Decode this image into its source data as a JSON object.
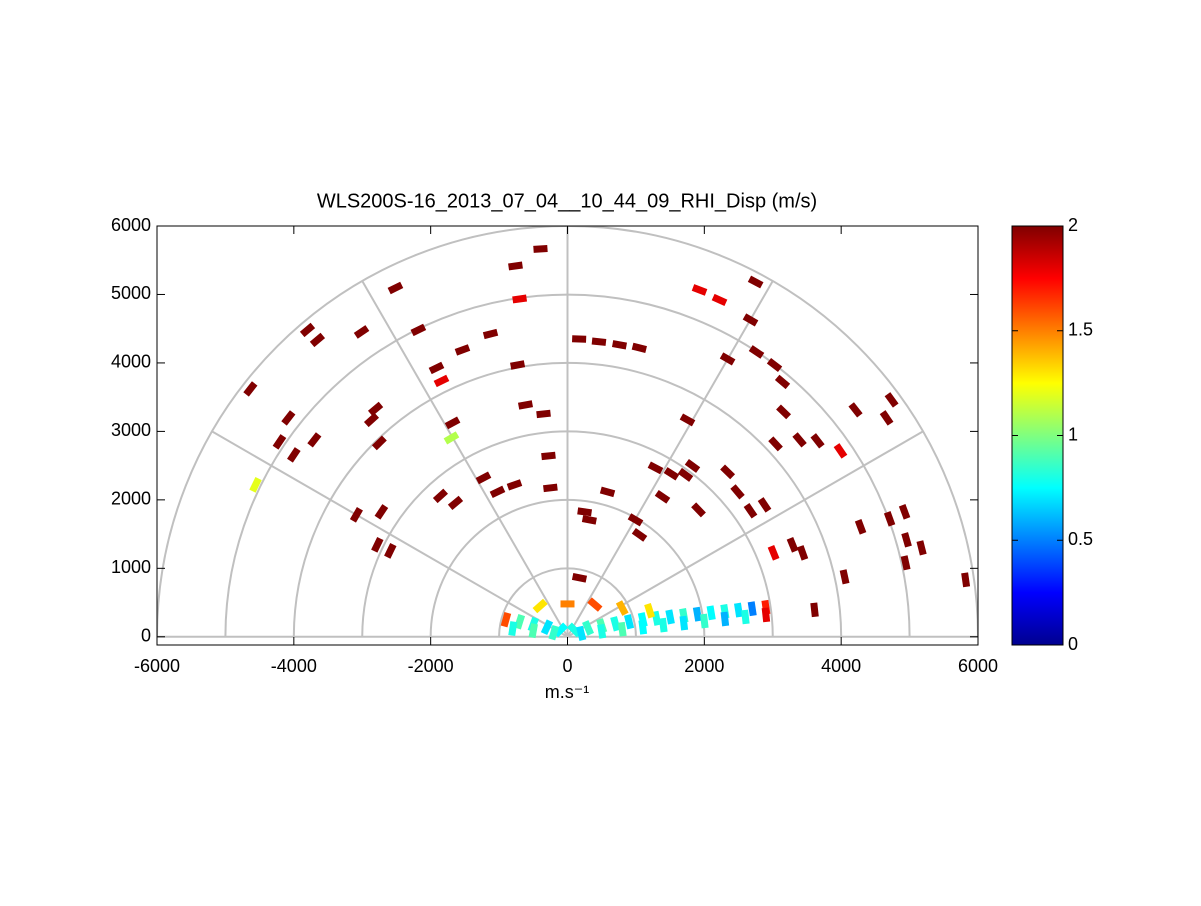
{
  "chart_data": {
    "type": "scatter",
    "title": "WLS200S-16_2013_07_04__10_44_09_RHI_Disp (m/s)",
    "xlabel": "m.s⁻¹",
    "xlim": [
      -6000,
      6000
    ],
    "ylim": [
      -120,
      6000
    ],
    "xticks": [
      -6000,
      -4000,
      -2000,
      0,
      2000,
      4000,
      6000
    ],
    "yticks": [
      0,
      1000,
      2000,
      3000,
      4000,
      5000,
      6000
    ],
    "clim": [
      0,
      2
    ],
    "cticks": [
      0,
      0.5,
      1,
      1.5,
      2
    ],
    "colormap": "jet",
    "rings": [
      1000,
      2000,
      3000,
      4000,
      5000,
      6000
    ],
    "spokes": [
      0,
      30,
      60,
      90,
      120,
      150,
      180
    ],
    "series": [
      {
        "x": [
          -395,
          -760,
          -2515,
          -3800,
          -3655,
          -3010,
          -4635,
          -4080,
          -3700,
          -4000,
          -4210,
          -2805,
          -2865,
          -2750,
          -2180,
          -1535,
          -1125,
          -1915,
          -1842,
          -730,
          -614,
          -350,
          -1680,
          -1696,
          -4560,
          -3085,
          -2720,
          -2780,
          -2590,
          -1857,
          -1637,
          -1228,
          -1023,
          -775,
          -278,
          -250,
          -700,
          170,
          460,
          760,
          1050,
          1754,
          1286,
          1520,
          1725,
          1389,
          1915,
          2340,
          2485,
          2675,
          2880,
          1930,
          2222,
          2750,
          2675,
          2340,
          2763,
          3026,
          3143,
          3158,
          3041,
          3392,
          3655,
          3990,
          4210,
          4737,
          4664,
          4284,
          4708,
          4927,
          4956,
          5175,
          4942,
          5819,
          4050,
          3290,
          3436,
          3012,
          3611,
          1827,
          994,
          1053,
          250,
          320,
          585,
          175,
          -900,
          -700,
          -500,
          -300,
          -100,
          100,
          300,
          500,
          700,
          900,
          1100,
          1300,
          1500,
          1700,
          1900,
          2100,
          2300,
          2500,
          2700,
          2900,
          -800,
          -500,
          -200,
          200,
          500,
          800,
          1100,
          1400,
          1700,
          2000,
          2300,
          2600,
          2900,
          -400,
          0,
          400,
          800,
          1200
        ],
        "y": [
          5665,
          5416,
          5095,
          4482,
          4336,
          4453,
          3620,
          3197,
          2876,
          2657,
          2847,
          3328,
          3168,
          2832,
          4482,
          4190,
          4423,
          3927,
          3737,
          3970,
          3387,
          3255,
          3124,
          2905,
          2219,
          1781,
          1825,
          1343,
          1255,
          2058,
          1956,
          2321,
          2117,
          2219,
          2642,
          2175,
          4934,
          4350,
          4310,
          4265,
          4220,
          3168,
          2467,
          2380,
          2365,
          2044,
          1854,
          2409,
          2117,
          1840,
          1927,
          5066,
          4920,
          5182,
          4628,
          4058,
          4160,
          3970,
          3723,
          3285,
          2818,
          2876,
          2862,
          2715,
          3314,
          3460,
          3197,
          1606,
          1723,
          1825,
          1416,
          1299,
          1080,
          832,
          876,
          1343,
          1226,
          1226,
          394,
          2496,
          1708,
          1489,
          1825,
          1708,
          2117,
          861,
          250,
          220,
          180,
          140,
          100,
          100,
          130,
          160,
          190,
          220,
          250,
          270,
          290,
          310,
          330,
          350,
          370,
          390,
          410,
          430,
          120,
          90,
          60,
          50,
          80,
          110,
          140,
          170,
          200,
          230,
          260,
          290,
          320,
          450,
          480,
          470,
          420,
          380
        ],
        "values": [
          2,
          2,
          2,
          2,
          2,
          2,
          2,
          2,
          2,
          2,
          2,
          2,
          2,
          2,
          2,
          2,
          2,
          2,
          1.8,
          2,
          2,
          2,
          2,
          1.1,
          1.2,
          2,
          2,
          2,
          2,
          2,
          2,
          2,
          2,
          2,
          2,
          2,
          1.8,
          2,
          2,
          2,
          2,
          2,
          2,
          2,
          2,
          2,
          2,
          2,
          2,
          2,
          2,
          1.8,
          1.8,
          2,
          2,
          2,
          2,
          2,
          2,
          2,
          2,
          2,
          2,
          1.8,
          2,
          2,
          2,
          2,
          2,
          2,
          2,
          2,
          2,
          2,
          2,
          2,
          2,
          1.8,
          2,
          2,
          2,
          2,
          2,
          2,
          2,
          2,
          1.6,
          0.9,
          0.8,
          0.7,
          0.75,
          0.8,
          0.85,
          0.9,
          0.8,
          0.7,
          0.75,
          0.8,
          0.7,
          0.85,
          0.6,
          0.75,
          0.8,
          0.7,
          0.5,
          1.7,
          0.8,
          0.9,
          0.85,
          0.7,
          0.8,
          0.9,
          0.75,
          0.8,
          0.7,
          0.85,
          0.6,
          0.8,
          1.8,
          1.3,
          1.5,
          1.6,
          1.4,
          1.3
        ]
      }
    ]
  }
}
